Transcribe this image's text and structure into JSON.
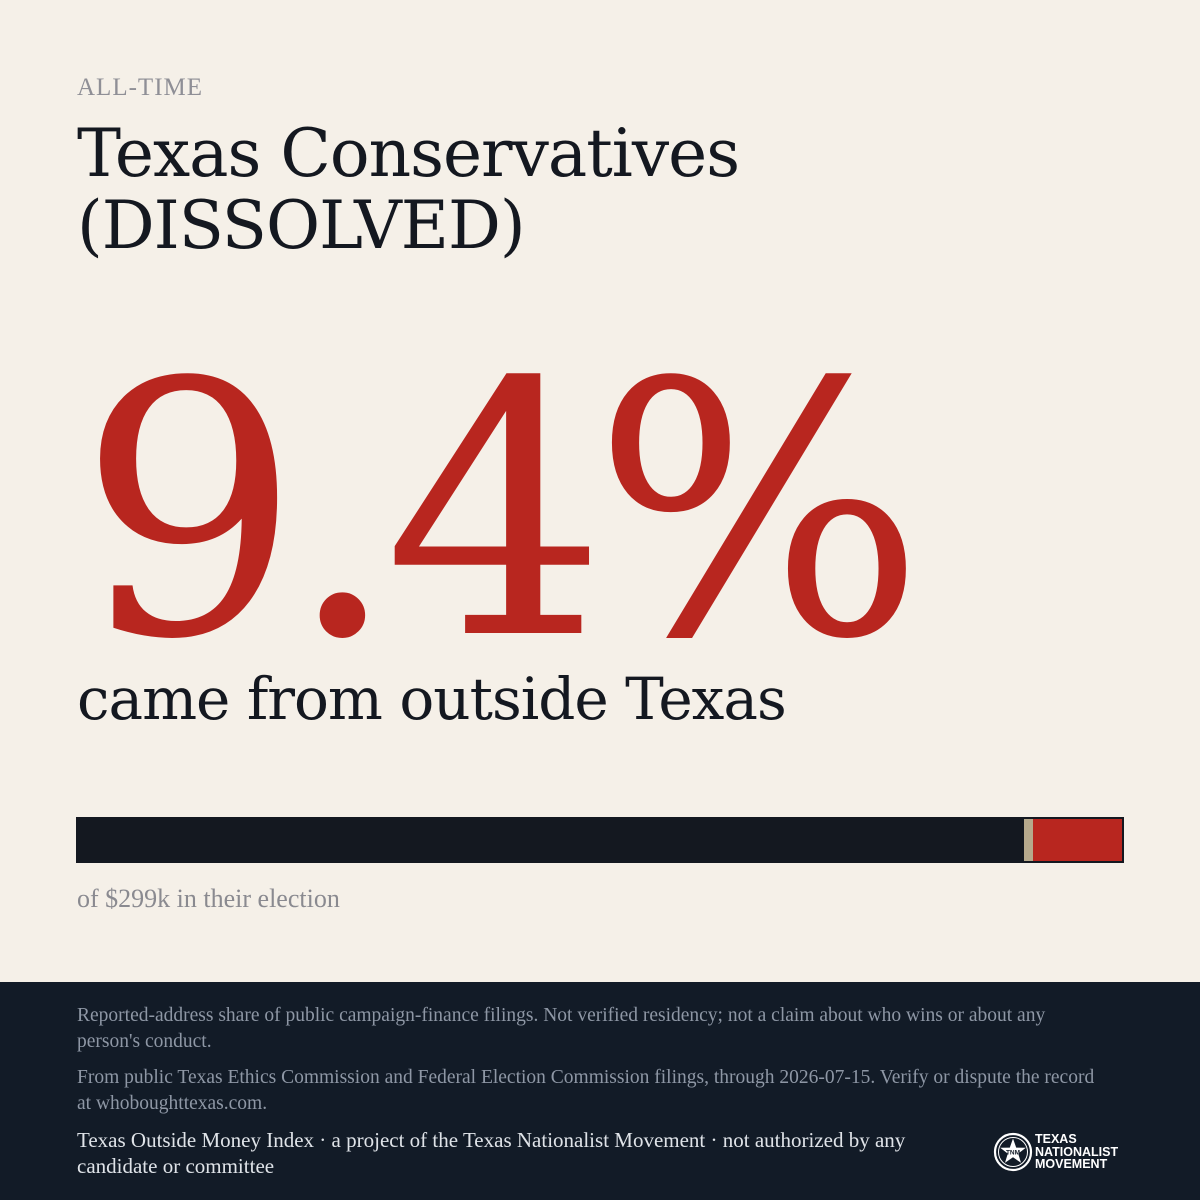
{
  "header": {
    "period": "ALL-TIME",
    "title": "Texas Conservatives (DISSOLVED)"
  },
  "stat": {
    "value": "9.4%",
    "caption": "came from outside Texas",
    "outside_share_percent": 9.4
  },
  "bar": {
    "subtitle": "of $299k in their election"
  },
  "footer": {
    "disclaimer": "Reported-address share of public campaign-finance filings. Not verified residency; not a claim about who wins or about any person's conduct.",
    "source": "From public Texas Ethics Commission and Federal Election Commission filings, through 2026-07-15. Verify or dispute the record at whoboughttexas.com.",
    "project": "Texas Outside Money Index · a project of the Texas Nationalist Movement · not authorized by any candidate or committee"
  },
  "logo": {
    "line1": "TEXAS",
    "line2": "NATIONALIST",
    "line3": "MOVEMENT",
    "icon": "star-seal-icon"
  },
  "colors": {
    "background": "#f5f0e8",
    "accent_red": "#b8261f",
    "ink": "#141820",
    "footer_bg": "#121b27",
    "divider": "#b6a98c"
  }
}
